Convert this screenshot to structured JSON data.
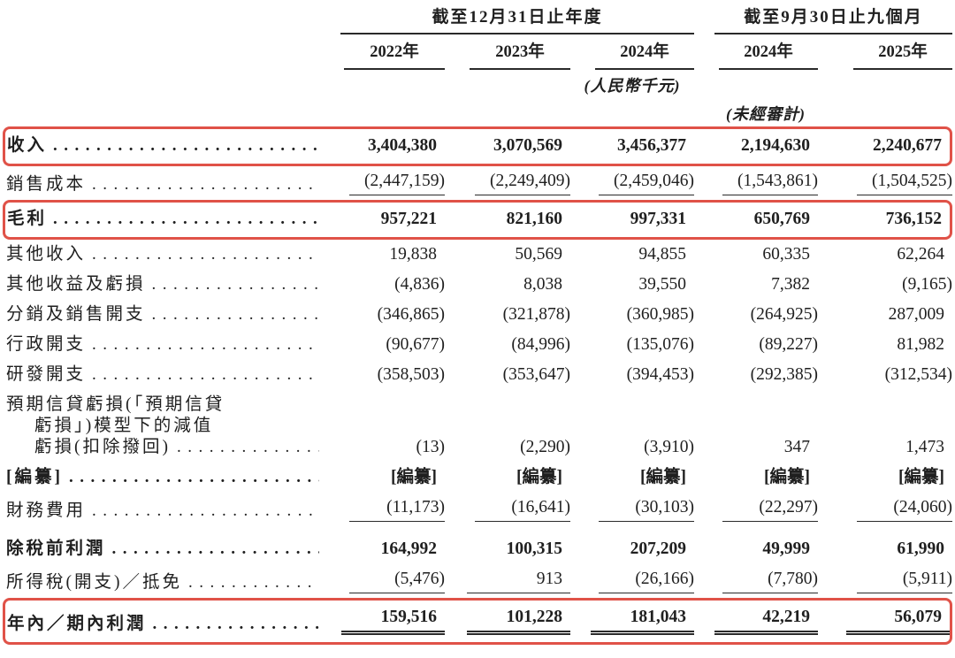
{
  "table": {
    "highlight_color": "#e05248",
    "column_groups": [
      {
        "label": "截至12月31日止年度",
        "span": 3
      },
      {
        "label": "截至9月30日止九個月",
        "span": 2
      }
    ],
    "columns": [
      "2022年",
      "2023年",
      "2024年",
      "2024年",
      "2025年"
    ],
    "currency_note": "(人民幣千元)",
    "unaudited_note": "(未經審計)",
    "rows": [
      {
        "label": "收入",
        "bold": true,
        "highlight": true,
        "values": [
          "3,404,380",
          "3,070,569",
          "3,456,377",
          "2,194,630",
          "2,240,677"
        ]
      },
      {
        "label": "銷售成本",
        "underline": "single",
        "values": [
          "(2,447,159)",
          "(2,249,409)",
          "(2,459,046)",
          "(1,543,861)",
          "(1,504,525)"
        ]
      },
      {
        "label": "毛利",
        "bold": true,
        "highlight": true,
        "values": [
          "957,221",
          "821,160",
          "997,331",
          "650,769",
          "736,152"
        ]
      },
      {
        "label": "其他收入",
        "values": [
          "19,838",
          "50,569",
          "94,855",
          "60,335",
          "62,264"
        ]
      },
      {
        "label": "其他收益及虧損",
        "values": [
          "(4,836)",
          "8,038",
          "39,550",
          "7,382",
          "(9,165)"
        ]
      },
      {
        "label": "分銷及銷售開支",
        "values": [
          "(346,865)",
          "(321,878)",
          "(360,985)",
          "(264,925)",
          "287,009"
        ]
      },
      {
        "label": "行政開支",
        "values": [
          "(90,677)",
          "(84,996)",
          "(135,076)",
          "(89,227)",
          "81,982"
        ]
      },
      {
        "label": "研發開支",
        "values": [
          "(358,503)",
          "(353,647)",
          "(394,453)",
          "(292,385)",
          "(312,534)"
        ]
      },
      {
        "label_lines": [
          "預期信貸虧損(「預期信貸",
          "虧損」)模型下的減值",
          "虧損(扣除撥回)"
        ],
        "values": [
          "(13)",
          "(2,290)",
          "(3,910)",
          "347",
          "1,473"
        ]
      },
      {
        "label": "[編纂]",
        "bold": true,
        "values": [
          "[編纂]",
          "[編纂]",
          "[編纂]",
          "[編纂]",
          "[編纂]"
        ]
      },
      {
        "label": "財務費用",
        "underline": "single",
        "values": [
          "(11,173)",
          "(16,641)",
          "(30,103)",
          "(22,297)",
          "(24,060)"
        ]
      },
      {
        "label": "除稅前利潤",
        "bold": true,
        "spacer_above": true,
        "values": [
          "164,992",
          "100,315",
          "207,209",
          "49,999",
          "61,990"
        ]
      },
      {
        "label": "所得稅(開支)／抵免",
        "underline": "single",
        "values": [
          "(5,476)",
          "913",
          "(26,166)",
          "(7,780)",
          "(5,911)"
        ]
      },
      {
        "label": "年內／期內利潤",
        "bold": true,
        "highlight": true,
        "underline": "double",
        "values": [
          "159,516",
          "101,228",
          "181,043",
          "42,219",
          "56,079"
        ]
      }
    ]
  }
}
